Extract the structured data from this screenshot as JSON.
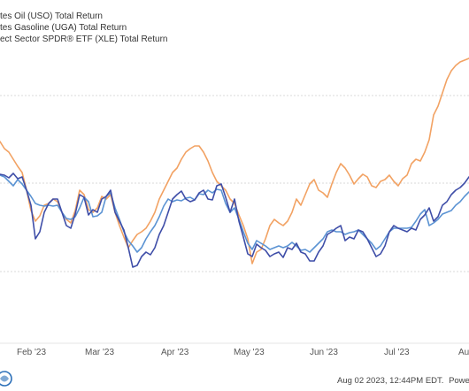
{
  "chart_data": {
    "type": "line",
    "x_ticks": [
      "Feb '23",
      "Mar '23",
      "Apr '23",
      "May '23",
      "Jun '23",
      "Jul '23",
      "Aug"
    ],
    "grid": true,
    "legend_position": "top-left",
    "series": [
      {
        "name": "tes Oil (USO) Total Return",
        "color": "#3f4ea8",
        "points": [
          [
            0,
            197
          ],
          [
            5,
            198
          ],
          [
            10,
            201
          ],
          [
            15,
            196
          ],
          [
            20,
            202
          ],
          [
            25,
            200
          ],
          [
            30,
            215
          ],
          [
            35,
            232
          ],
          [
            40,
            270
          ],
          [
            45,
            262
          ],
          [
            50,
            240
          ],
          [
            55,
            230
          ],
          [
            60,
            225
          ],
          [
            65,
            225
          ],
          [
            70,
            240
          ],
          [
            75,
            255
          ],
          [
            80,
            258
          ],
          [
            85,
            242
          ],
          [
            90,
            220
          ],
          [
            95,
            223
          ],
          [
            100,
            243
          ],
          [
            105,
            237
          ],
          [
            110,
            240
          ],
          [
            115,
            225
          ],
          [
            120,
            222
          ],
          [
            125,
            215
          ],
          [
            130,
            240
          ],
          [
            135,
            250
          ],
          [
            140,
            260
          ],
          [
            145,
            280
          ],
          [
            150,
            302
          ],
          [
            155,
            300
          ],
          [
            160,
            290
          ],
          [
            165,
            285
          ],
          [
            170,
            288
          ],
          [
            175,
            280
          ],
          [
            180,
            265
          ],
          [
            185,
            255
          ],
          [
            190,
            240
          ],
          [
            195,
            225
          ],
          [
            200,
            220
          ],
          [
            205,
            216
          ],
          [
            210,
            225
          ],
          [
            215,
            228
          ],
          [
            220,
            226
          ],
          [
            225,
            218
          ],
          [
            230,
            215
          ],
          [
            235,
            225
          ],
          [
            240,
            226
          ],
          [
            245,
            210
          ],
          [
            250,
            208
          ],
          [
            255,
            223
          ],
          [
            260,
            240
          ],
          [
            265,
            225
          ],
          [
            270,
            250
          ],
          [
            275,
            268
          ],
          [
            280,
            287
          ],
          [
            285,
            290
          ],
          [
            290,
            276
          ],
          [
            295,
            280
          ],
          [
            300,
            283
          ],
          [
            305,
            290
          ],
          [
            310,
            287
          ],
          [
            315,
            285
          ],
          [
            320,
            291
          ],
          [
            325,
            280
          ],
          [
            330,
            282
          ],
          [
            335,
            275
          ],
          [
            340,
            285
          ],
          [
            345,
            287
          ],
          [
            350,
            295
          ],
          [
            355,
            295
          ],
          [
            360,
            285
          ],
          [
            365,
            278
          ],
          [
            370,
            265
          ],
          [
            375,
            262
          ],
          [
            380,
            258
          ],
          [
            385,
            255
          ],
          [
            390,
            272
          ],
          [
            395,
            268
          ],
          [
            400,
            270
          ],
          [
            405,
            260
          ],
          [
            410,
            262
          ],
          [
            415,
            270
          ],
          [
            420,
            280
          ],
          [
            425,
            290
          ],
          [
            430,
            287
          ],
          [
            435,
            278
          ],
          [
            440,
            262
          ],
          [
            445,
            255
          ],
          [
            450,
            258
          ],
          [
            455,
            260
          ],
          [
            460,
            262
          ],
          [
            465,
            258
          ],
          [
            470,
            260
          ],
          [
            475,
            248
          ],
          [
            480,
            243
          ],
          [
            485,
            235
          ],
          [
            490,
            250
          ],
          [
            495,
            245
          ],
          [
            500,
            232
          ],
          [
            505,
            228
          ],
          [
            510,
            220
          ],
          [
            515,
            215
          ],
          [
            520,
            212
          ],
          [
            525,
            207
          ],
          [
            530,
            200
          ]
        ]
      },
      {
        "name": "tes Gasoline (UGA) Total Return",
        "color": "#f2a263",
        "points": [
          [
            0,
            160
          ],
          [
            5,
            168
          ],
          [
            10,
            172
          ],
          [
            15,
            180
          ],
          [
            20,
            188
          ],
          [
            25,
            195
          ],
          [
            30,
            215
          ],
          [
            35,
            238
          ],
          [
            40,
            250
          ],
          [
            45,
            244
          ],
          [
            50,
            232
          ],
          [
            55,
            230
          ],
          [
            60,
            225
          ],
          [
            65,
            228
          ],
          [
            70,
            240
          ],
          [
            75,
            248
          ],
          [
            80,
            252
          ],
          [
            85,
            238
          ],
          [
            90,
            215
          ],
          [
            95,
            220
          ],
          [
            100,
            237
          ],
          [
            105,
            240
          ],
          [
            110,
            235
          ],
          [
            115,
            222
          ],
          [
            120,
            225
          ],
          [
            125,
            220
          ],
          [
            130,
            240
          ],
          [
            135,
            255
          ],
          [
            140,
            268
          ],
          [
            145,
            280
          ],
          [
            150,
            272
          ],
          [
            155,
            265
          ],
          [
            160,
            262
          ],
          [
            165,
            258
          ],
          [
            170,
            250
          ],
          [
            175,
            240
          ],
          [
            180,
            225
          ],
          [
            185,
            215
          ],
          [
            190,
            205
          ],
          [
            195,
            195
          ],
          [
            200,
            190
          ],
          [
            205,
            180
          ],
          [
            210,
            172
          ],
          [
            215,
            168
          ],
          [
            220,
            165
          ],
          [
            225,
            165
          ],
          [
            230,
            172
          ],
          [
            235,
            182
          ],
          [
            240,
            195
          ],
          [
            245,
            205
          ],
          [
            250,
            210
          ],
          [
            255,
            215
          ],
          [
            260,
            225
          ],
          [
            265,
            230
          ],
          [
            270,
            243
          ],
          [
            275,
            255
          ],
          [
            280,
            270
          ],
          [
            285,
            298
          ],
          [
            290,
            285
          ],
          [
            295,
            282
          ],
          [
            300,
            270
          ],
          [
            305,
            255
          ],
          [
            310,
            248
          ],
          [
            315,
            252
          ],
          [
            320,
            255
          ],
          [
            325,
            250
          ],
          [
            330,
            240
          ],
          [
            335,
            225
          ],
          [
            340,
            232
          ],
          [
            345,
            220
          ],
          [
            350,
            208
          ],
          [
            355,
            203
          ],
          [
            360,
            215
          ],
          [
            365,
            218
          ],
          [
            370,
            223
          ],
          [
            375,
            208
          ],
          [
            380,
            195
          ],
          [
            385,
            185
          ],
          [
            390,
            190
          ],
          [
            395,
            198
          ],
          [
            400,
            208
          ],
          [
            405,
            202
          ],
          [
            410,
            197
          ],
          [
            415,
            200
          ],
          [
            420,
            210
          ],
          [
            425,
            212
          ],
          [
            430,
            205
          ],
          [
            435,
            203
          ],
          [
            440,
            198
          ],
          [
            445,
            205
          ],
          [
            450,
            210
          ],
          [
            455,
            202
          ],
          [
            460,
            198
          ],
          [
            465,
            185
          ],
          [
            470,
            180
          ],
          [
            475,
            182
          ],
          [
            480,
            172
          ],
          [
            485,
            158
          ],
          [
            490,
            130
          ],
          [
            495,
            120
          ],
          [
            500,
            105
          ],
          [
            505,
            90
          ],
          [
            510,
            80
          ],
          [
            515,
            74
          ],
          [
            520,
            70
          ],
          [
            525,
            68
          ],
          [
            530,
            66
          ]
        ]
      },
      {
        "name": "ect Sector SPDR® ETF (XLE) Total Return",
        "color": "#5b93d3",
        "points": [
          [
            0,
            198
          ],
          [
            5,
            200
          ],
          [
            10,
            205
          ],
          [
            15,
            210
          ],
          [
            20,
            203
          ],
          [
            25,
            208
          ],
          [
            30,
            215
          ],
          [
            35,
            222
          ],
          [
            40,
            230
          ],
          [
            45,
            232
          ],
          [
            50,
            233
          ],
          [
            55,
            232
          ],
          [
            60,
            233
          ],
          [
            65,
            232
          ],
          [
            70,
            240
          ],
          [
            75,
            247
          ],
          [
            80,
            248
          ],
          [
            85,
            245
          ],
          [
            90,
            235
          ],
          [
            95,
            223
          ],
          [
            100,
            228
          ],
          [
            105,
            245
          ],
          [
            110,
            244
          ],
          [
            115,
            240
          ],
          [
            120,
            222
          ],
          [
            125,
            218
          ],
          [
            130,
            235
          ],
          [
            135,
            248
          ],
          [
            140,
            262
          ],
          [
            145,
            272
          ],
          [
            150,
            278
          ],
          [
            155,
            285
          ],
          [
            160,
            280
          ],
          [
            165,
            270
          ],
          [
            170,
            262
          ],
          [
            175,
            255
          ],
          [
            180,
            245
          ],
          [
            185,
            233
          ],
          [
            190,
            225
          ],
          [
            195,
            228
          ],
          [
            200,
            226
          ],
          [
            205,
            227
          ],
          [
            210,
            224
          ],
          [
            215,
            223
          ],
          [
            220,
            226
          ],
          [
            225,
            219
          ],
          [
            230,
            220
          ],
          [
            235,
            215
          ],
          [
            240,
            218
          ],
          [
            245,
            214
          ],
          [
            250,
            215
          ],
          [
            255,
            230
          ],
          [
            260,
            240
          ],
          [
            265,
            235
          ],
          [
            270,
            248
          ],
          [
            275,
            262
          ],
          [
            280,
            275
          ],
          [
            285,
            282
          ],
          [
            290,
            272
          ],
          [
            295,
            275
          ],
          [
            300,
            278
          ],
          [
            305,
            282
          ],
          [
            310,
            280
          ],
          [
            315,
            278
          ],
          [
            320,
            280
          ],
          [
            325,
            278
          ],
          [
            330,
            274
          ],
          [
            335,
            278
          ],
          [
            340,
            283
          ],
          [
            345,
            282
          ],
          [
            350,
            285
          ],
          [
            355,
            280
          ],
          [
            360,
            275
          ],
          [
            365,
            270
          ],
          [
            370,
            262
          ],
          [
            375,
            260
          ],
          [
            380,
            262
          ],
          [
            385,
            262
          ],
          [
            390,
            265
          ],
          [
            395,
            263
          ],
          [
            400,
            262
          ],
          [
            405,
            260
          ],
          [
            410,
            265
          ],
          [
            415,
            270
          ],
          [
            420,
            275
          ],
          [
            425,
            282
          ],
          [
            430,
            278
          ],
          [
            435,
            270
          ],
          [
            440,
            262
          ],
          [
            445,
            258
          ],
          [
            450,
            258
          ],
          [
            455,
            258
          ],
          [
            460,
            258
          ],
          [
            465,
            257
          ],
          [
            470,
            250
          ],
          [
            475,
            242
          ],
          [
            480,
            237
          ],
          [
            485,
            255
          ],
          [
            490,
            252
          ],
          [
            495,
            248
          ],
          [
            500,
            242
          ],
          [
            505,
            240
          ],
          [
            510,
            238
          ],
          [
            515,
            232
          ],
          [
            520,
            228
          ],
          [
            525,
            222
          ],
          [
            530,
            217
          ]
        ]
      }
    ]
  },
  "footer": {
    "timestamp": "Aug 02 2023, 12:44PM EDT.",
    "powered_by": "Powered by"
  },
  "colors": {
    "background": "#ffffff",
    "grid": "#d8d8d8",
    "uso": "#3f4ea8",
    "uga": "#f2a263",
    "xle": "#5b93d3"
  },
  "icons": {
    "logo": "ycharts-logo-icon"
  }
}
